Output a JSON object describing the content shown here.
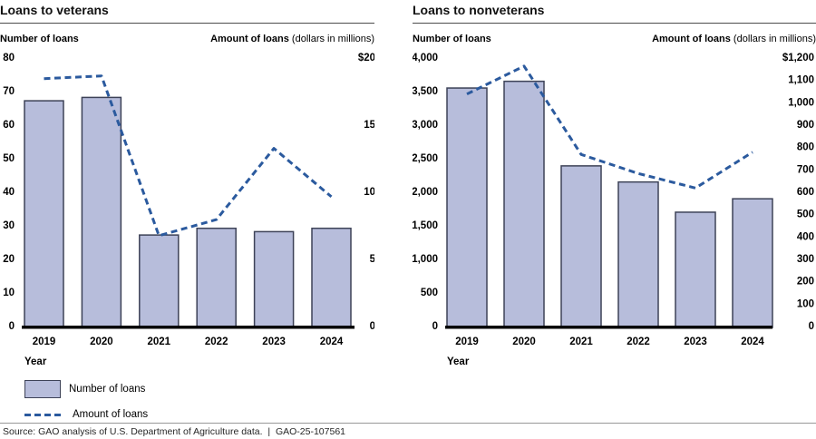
{
  "chart_data": [
    {
      "type": "bar",
      "title": "Loans to veterans",
      "xlabel": "Year",
      "categories": [
        "2019",
        "2020",
        "2021",
        "2022",
        "2023",
        "2024"
      ],
      "series": [
        {
          "name": "Number of loans",
          "render": "bar",
          "axis": "left",
          "values": [
            67,
            68,
            27,
            29,
            28,
            29
          ]
        },
        {
          "name": "Amount of loans",
          "render": "line",
          "axis": "right",
          "values": [
            18.4,
            18.6,
            6.7,
            7.9,
            13.2,
            9.6
          ]
        }
      ],
      "left_axis": {
        "label": "Number of loans",
        "min": 0,
        "max": 80,
        "ticks": [
          "80",
          "70",
          "60",
          "50",
          "40",
          "30",
          "20",
          "10",
          "0"
        ]
      },
      "right_axis": {
        "label": "Amount of loans",
        "note": "(dollars in millions)",
        "min": 0,
        "max": 20,
        "ticks": [
          "$20",
          "15",
          "10",
          "5",
          "0"
        ]
      },
      "grid": false,
      "legend_position": "bottom-left"
    },
    {
      "type": "bar",
      "title": "Loans to nonveterans",
      "xlabel": "Year",
      "categories": [
        "2019",
        "2020",
        "2021",
        "2022",
        "2023",
        "2024"
      ],
      "series": [
        {
          "name": "Number of loans",
          "render": "bar",
          "axis": "left",
          "values": [
            3540,
            3640,
            2380,
            2140,
            1690,
            1890
          ]
        },
        {
          "name": "Amount of loans",
          "render": "line",
          "axis": "right",
          "values": [
            1035,
            1160,
            765,
            680,
            615,
            775
          ]
        }
      ],
      "left_axis": {
        "label": "Number of loans",
        "min": 0,
        "max": 4000,
        "ticks": [
          "4,000",
          "3,500",
          "3,000",
          "2,500",
          "2,000",
          "1,500",
          "1,000",
          "500",
          "0"
        ]
      },
      "right_axis": {
        "label": "Amount of loans",
        "note": "(dollars in millions)",
        "min": 0,
        "max": 1200,
        "ticks": [
          "$1,200",
          "1,100",
          "1,000",
          "900",
          "800",
          "700",
          "600",
          "500",
          "400",
          "300",
          "200",
          "100",
          "0"
        ]
      },
      "grid": false,
      "legend_position": "none"
    }
  ],
  "legend": {
    "items": [
      {
        "type": "bar-swatch",
        "label": "Number of loans"
      },
      {
        "type": "line-swatch",
        "label": "Amount of loans"
      }
    ]
  },
  "footer": {
    "source": "Source: GAO analysis of U.S. Department of Agriculture data.  |  GAO-25-107561"
  },
  "colors": {
    "bar_fill": "#b7bddb",
    "bar_border": "#3d4257",
    "line": "#2b5a9e",
    "baseline": "#000000",
    "title_rule": "#4d4d4d",
    "footer_rule": "#999999",
    "text": "#000000"
  }
}
